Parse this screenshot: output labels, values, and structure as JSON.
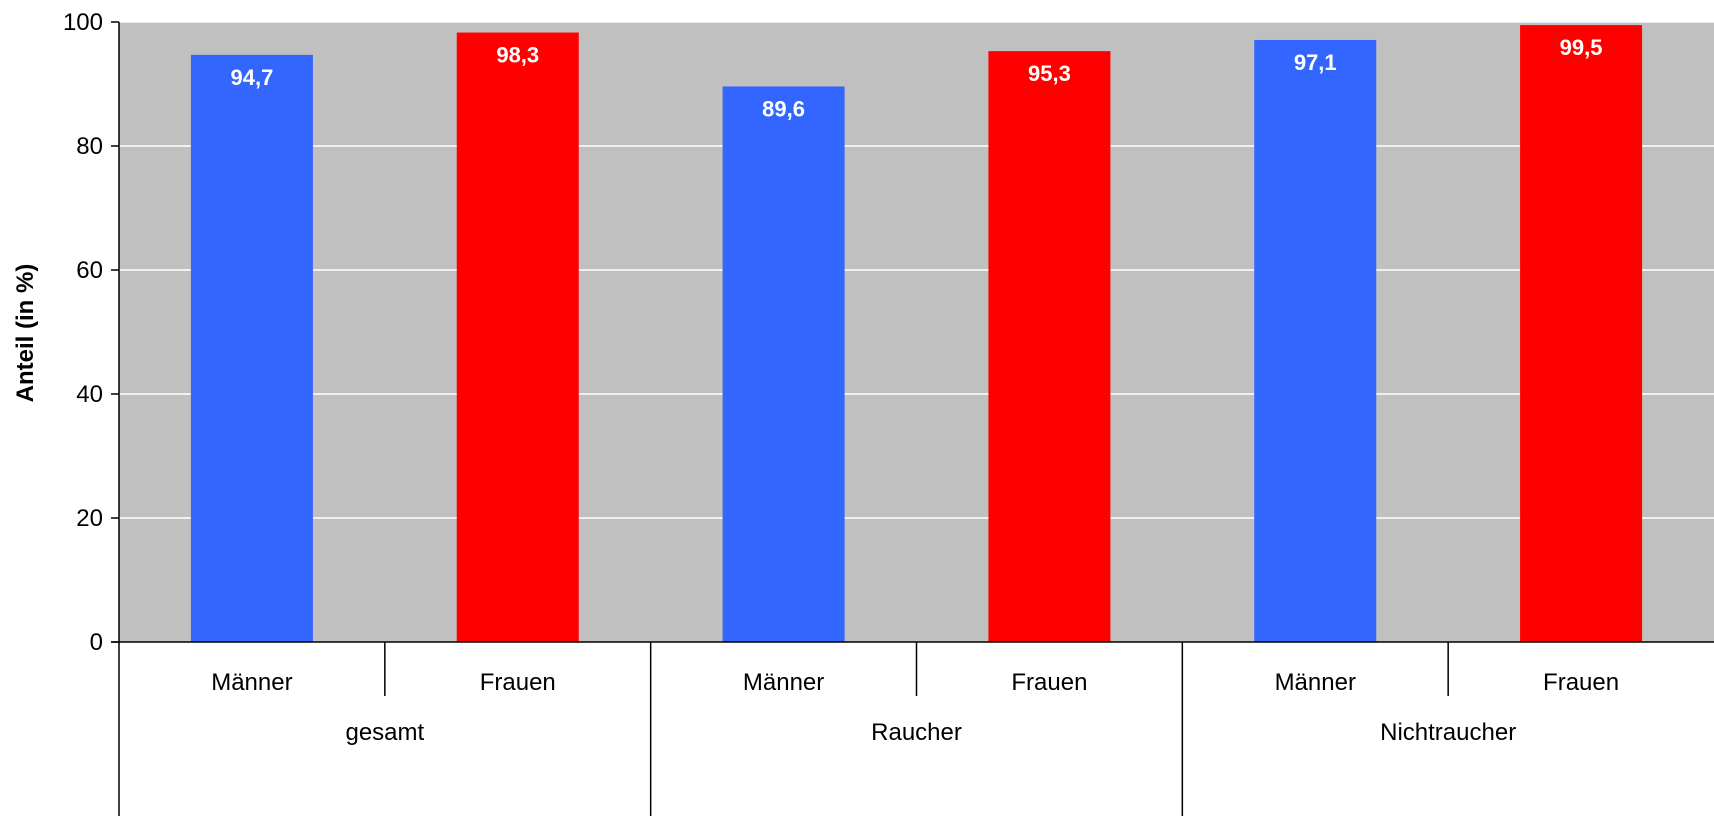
{
  "chart_data": {
    "type": "bar",
    "ylabel": "Anteil (in %)",
    "ylim": [
      0,
      100
    ],
    "yticks": [
      "0",
      "20",
      "40",
      "60",
      "80",
      "100"
    ],
    "grid": true,
    "groups": [
      {
        "name": "gesamt",
        "bars": [
          {
            "label": "Männer",
            "value": 94.7,
            "display": "94,7",
            "color": "#3366ff"
          },
          {
            "label": "Frauen",
            "value": 98.3,
            "display": "98,3",
            "color": "#ff0000"
          }
        ]
      },
      {
        "name": "Raucher",
        "bars": [
          {
            "label": "Männer",
            "value": 89.6,
            "display": "89,6",
            "color": "#3366ff"
          },
          {
            "label": "Frauen",
            "value": 95.3,
            "display": "95,3",
            "color": "#ff0000"
          }
        ]
      },
      {
        "name": "Nichtraucher",
        "bars": [
          {
            "label": "Männer",
            "value": 97.1,
            "display": "97,1",
            "color": "#3366ff"
          },
          {
            "label": "Frauen",
            "value": 99.5,
            "display": "99,5",
            "color": "#ff0000"
          }
        ]
      }
    ],
    "colors": {
      "plot_bg": "#c0c0c0",
      "grid": "#ffffff",
      "maenner": "#3366ff",
      "frauen": "#ff0000"
    }
  }
}
